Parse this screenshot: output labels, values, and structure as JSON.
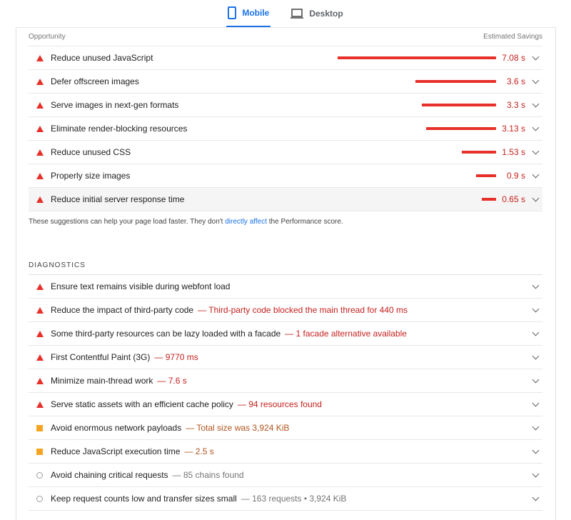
{
  "tabs": [
    {
      "label": "Mobile",
      "icon": "mobile-icon",
      "active": true
    },
    {
      "label": "Desktop",
      "icon": "desktop-icon",
      "active": false
    }
  ],
  "opportunity": {
    "header": "Opportunity",
    "savings_header": "Estimated Savings",
    "items": [
      {
        "title": "Reduce unused JavaScript",
        "savings": 7.08,
        "label": "7.08 s"
      },
      {
        "title": "Defer offscreen images",
        "savings": 3.6,
        "label": "3.6 s"
      },
      {
        "title": "Serve images in next-gen formats",
        "savings": 3.3,
        "label": "3.3 s"
      },
      {
        "title": "Eliminate render-blocking resources",
        "savings": 3.13,
        "label": "3.13 s"
      },
      {
        "title": "Reduce unused CSS",
        "savings": 1.53,
        "label": "1.53 s"
      },
      {
        "title": "Properly size images",
        "savings": 0.9,
        "label": "0.9 s"
      },
      {
        "title": "Reduce initial server response time",
        "savings": 0.65,
        "label": "0.65 s"
      }
    ],
    "note_before": "These suggestions can help your page load faster. They don't ",
    "note_link": "directly affect",
    "note_after": " the Performance score."
  },
  "diagnostics": {
    "header": "DIAGNOSTICS",
    "items": [
      {
        "title": "Ensure text remains visible during webfont load",
        "detail": "",
        "severity": "fail"
      },
      {
        "title": "Reduce the impact of third-party code",
        "detail": "— Third-party code blocked the main thread for 440 ms",
        "severity": "fail"
      },
      {
        "title": "Some third-party resources can be lazy loaded with a facade",
        "detail": "— 1 facade alternative available",
        "severity": "fail"
      },
      {
        "title": "First Contentful Paint (3G)",
        "detail": "— 9770 ms",
        "severity": "fail"
      },
      {
        "title": "Minimize main-thread work",
        "detail": "— 7.6 s",
        "severity": "fail"
      },
      {
        "title": "Serve static assets with an efficient cache policy",
        "detail": "— 94 resources found",
        "severity": "fail"
      },
      {
        "title": "Avoid enormous network payloads",
        "detail": "— Total size was 3,924 KiB",
        "severity": "average"
      },
      {
        "title": "Reduce JavaScript execution time",
        "detail": "— 2.5 s",
        "severity": "average"
      },
      {
        "title": "Avoid chaining critical requests",
        "detail": "— 85 chains found",
        "severity": "info"
      },
      {
        "title": "Keep request counts low and transfer sizes small",
        "detail": "— 163 requests • 3,924 KiB",
        "severity": "info"
      }
    ]
  },
  "colors": {
    "fail": "#e8302a",
    "average": "#f4a623",
    "accent": "#1a73e8"
  }
}
